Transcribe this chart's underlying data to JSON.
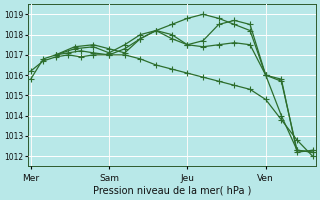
{
  "background_color": "#b8e8e8",
  "grid_color": "#ffffff",
  "line_color": "#2d6e2d",
  "xlabel": "Pression niveau de la mer( hPa )",
  "ylim": [
    1011.5,
    1019.5
  ],
  "yticks": [
    1012,
    1013,
    1014,
    1015,
    1016,
    1017,
    1018,
    1019
  ],
  "xtick_labels": [
    "Mer",
    "Sam",
    "Jeu",
    "Ven"
  ],
  "xtick_positions": [
    0,
    25,
    50,
    75
  ],
  "vlines_x": [
    0,
    25,
    50,
    75
  ],
  "xlim": [
    -1,
    91
  ],
  "series": [
    {
      "x": [
        0,
        4,
        8,
        12,
        16,
        20,
        25,
        30,
        35,
        40,
        45,
        50,
        55,
        60,
        65,
        70,
        75,
        80,
        85,
        90
      ],
      "y": [
        1016.2,
        1016.7,
        1016.9,
        1017.0,
        1016.9,
        1017.0,
        1017.0,
        1017.0,
        1016.8,
        1016.5,
        1016.3,
        1016.1,
        1015.9,
        1015.7,
        1015.5,
        1015.3,
        1014.8,
        1013.8,
        1012.8,
        1012.0
      ]
    },
    {
      "x": [
        0,
        4,
        8,
        12,
        16,
        20,
        25,
        30,
        35,
        40,
        45,
        50,
        55,
        60,
        65,
        70,
        75,
        80,
        85,
        90
      ],
      "y": [
        1015.8,
        1016.8,
        1017.0,
        1017.1,
        1017.2,
        1017.1,
        1017.0,
        1017.3,
        1017.8,
        1018.2,
        1018.5,
        1018.8,
        1019.0,
        1018.8,
        1018.5,
        1018.2,
        1016.0,
        1014.0,
        1012.3,
        1012.2
      ]
    },
    {
      "x": [
        8,
        14,
        20,
        25,
        30,
        35,
        40,
        45,
        50,
        55,
        60,
        65,
        70,
        75,
        80,
        85,
        90
      ],
      "y": [
        1017.0,
        1017.3,
        1017.4,
        1017.1,
        1017.5,
        1018.0,
        1018.2,
        1017.8,
        1017.5,
        1017.7,
        1018.5,
        1018.7,
        1018.5,
        1016.0,
        1015.7,
        1012.3,
        1012.2
      ]
    },
    {
      "x": [
        8,
        14,
        20,
        25,
        30,
        35,
        40,
        45,
        50,
        55,
        60,
        65,
        70,
        75,
        80,
        85,
        90
      ],
      "y": [
        1017.0,
        1017.4,
        1017.5,
        1017.3,
        1017.1,
        1017.8,
        1018.2,
        1018.0,
        1017.5,
        1017.4,
        1017.5,
        1017.6,
        1017.5,
        1016.0,
        1015.8,
        1012.2,
        1012.3
      ]
    }
  ]
}
